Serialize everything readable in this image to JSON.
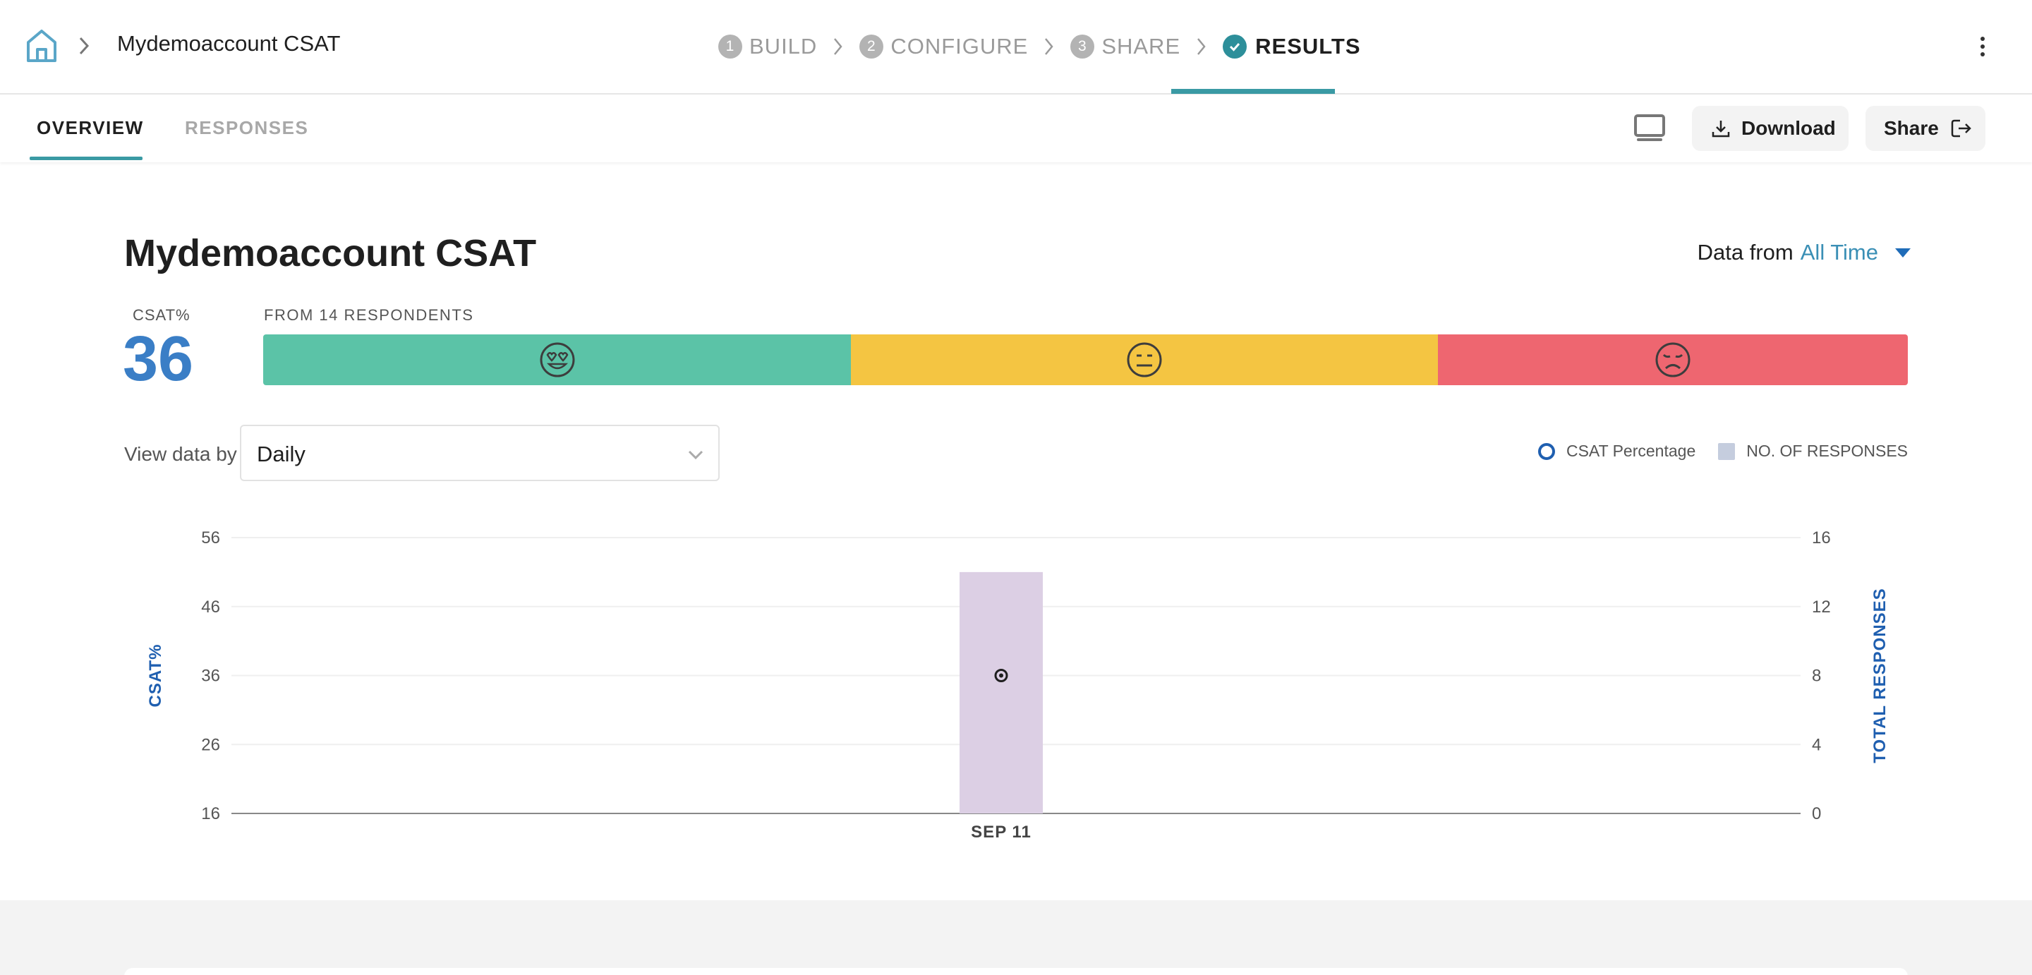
{
  "header": {
    "breadcrumb_title": "Mydemoaccount CSAT",
    "steps": [
      {
        "num": "1",
        "label": "BUILD"
      },
      {
        "num": "2",
        "label": "CONFIGURE"
      },
      {
        "num": "3",
        "label": "SHARE"
      },
      {
        "num": "",
        "label": "RESULTS",
        "active": true
      }
    ],
    "accent_color": "#3a9aa4"
  },
  "tabs": {
    "overview": "OVERVIEW",
    "responses": "RESPONSES"
  },
  "toolbar": {
    "download_label": "Download",
    "share_label": "Share"
  },
  "report": {
    "title": "Mydemoaccount CSAT",
    "data_from_label": "Data from",
    "data_from_value": "All Time",
    "csat_label": "CSAT%",
    "csat_value": "36",
    "respondents_label": "FROM 14 RESPONDENTS",
    "sentiment_bar": [
      {
        "name": "satisfied",
        "icon": "heart-eyes-face-icon",
        "color": "#5bc3a7"
      },
      {
        "name": "neutral",
        "icon": "neutral-face-icon",
        "color": "#f4c542"
      },
      {
        "name": "dissatisfied",
        "icon": "sad-face-icon",
        "color": "#ee6670"
      }
    ],
    "view_by_label": "View data by",
    "view_by_value": "Daily",
    "legend": {
      "csat": "CSAT Percentage",
      "responses": "NO. OF RESPONSES"
    }
  },
  "chart_data": {
    "type": "bar",
    "categories": [
      "SEP 11"
    ],
    "series": [
      {
        "name": "NO. OF RESPONSES",
        "axis": "right",
        "values": [
          14
        ],
        "color": "#dccfe4"
      },
      {
        "name": "CSAT Percentage",
        "axis": "left",
        "type": "point",
        "values": [
          36
        ],
        "color": "#1f1f1f"
      }
    ],
    "ylabel": "CSAT%",
    "ylabel_right": "TOTAL RESPONSES",
    "ylim": [
      16,
      56
    ],
    "yticks": [
      "56",
      "46",
      "36",
      "26",
      "16"
    ],
    "ylim_right": [
      0,
      16
    ],
    "yticks_right": [
      "16",
      "12",
      "8",
      "4",
      "0"
    ],
    "grid": true
  }
}
